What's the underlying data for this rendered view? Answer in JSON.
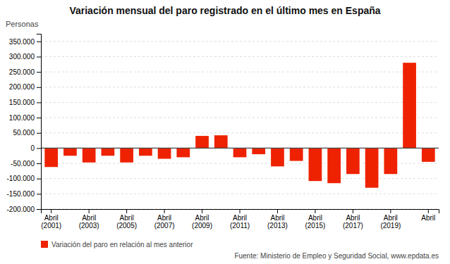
{
  "chart_data": {
    "type": "bar",
    "title": "Variación mensual del paro registrado en el último mes en España",
    "ylabel": "Personas",
    "categories": [
      "Abril\n(2001)",
      null,
      "Abril\n(2003)",
      null,
      "Abril\n(2005)",
      null,
      "Abril\n(2007)",
      null,
      "Abril\n(2009)",
      null,
      "Abril\n(2011)",
      null,
      "Abril\n(2013)",
      null,
      "Abril\n(2015)",
      null,
      "Abril\n(2017)",
      null,
      "Abril\n(2019)",
      null,
      "Abril"
    ],
    "series": [
      {
        "name": "Variación del paro en relación al mes anterior",
        "color": "#EE2200",
        "values": [
          -62000,
          -25000,
          -47000,
          -25000,
          -47000,
          -25000,
          -35000,
          -30000,
          40000,
          42000,
          -30000,
          -20000,
          -60000,
          -42000,
          -108000,
          -115000,
          -85000,
          -130000,
          -85000,
          280000,
          -45000
        ]
      }
    ],
    "ylim": [
      -200000,
      375000
    ],
    "yticks": [
      {
        "value": -200000,
        "label": "-200.000"
      },
      {
        "value": -150000,
        "label": "-150.000"
      },
      {
        "value": -100000,
        "label": "-100.000"
      },
      {
        "value": -50000,
        "label": "-50.000"
      },
      0,
      {
        "value": 50000,
        "label": "50.000"
      },
      {
        "value": 100000,
        "label": "100.000"
      },
      {
        "value": 150000,
        "label": "150.000"
      },
      {
        "value": 200000,
        "label": "200.000"
      },
      {
        "value": 250000,
        "label": "250.000"
      },
      {
        "value": 300000,
        "label": "300.000"
      },
      {
        "value": 350000,
        "label": "350.000"
      }
    ],
    "grid": true,
    "legend": "bottom",
    "annotations": [
      "Fuente: Ministerio de Empleo y Seguridad Social, www.epdata.es"
    ]
  }
}
